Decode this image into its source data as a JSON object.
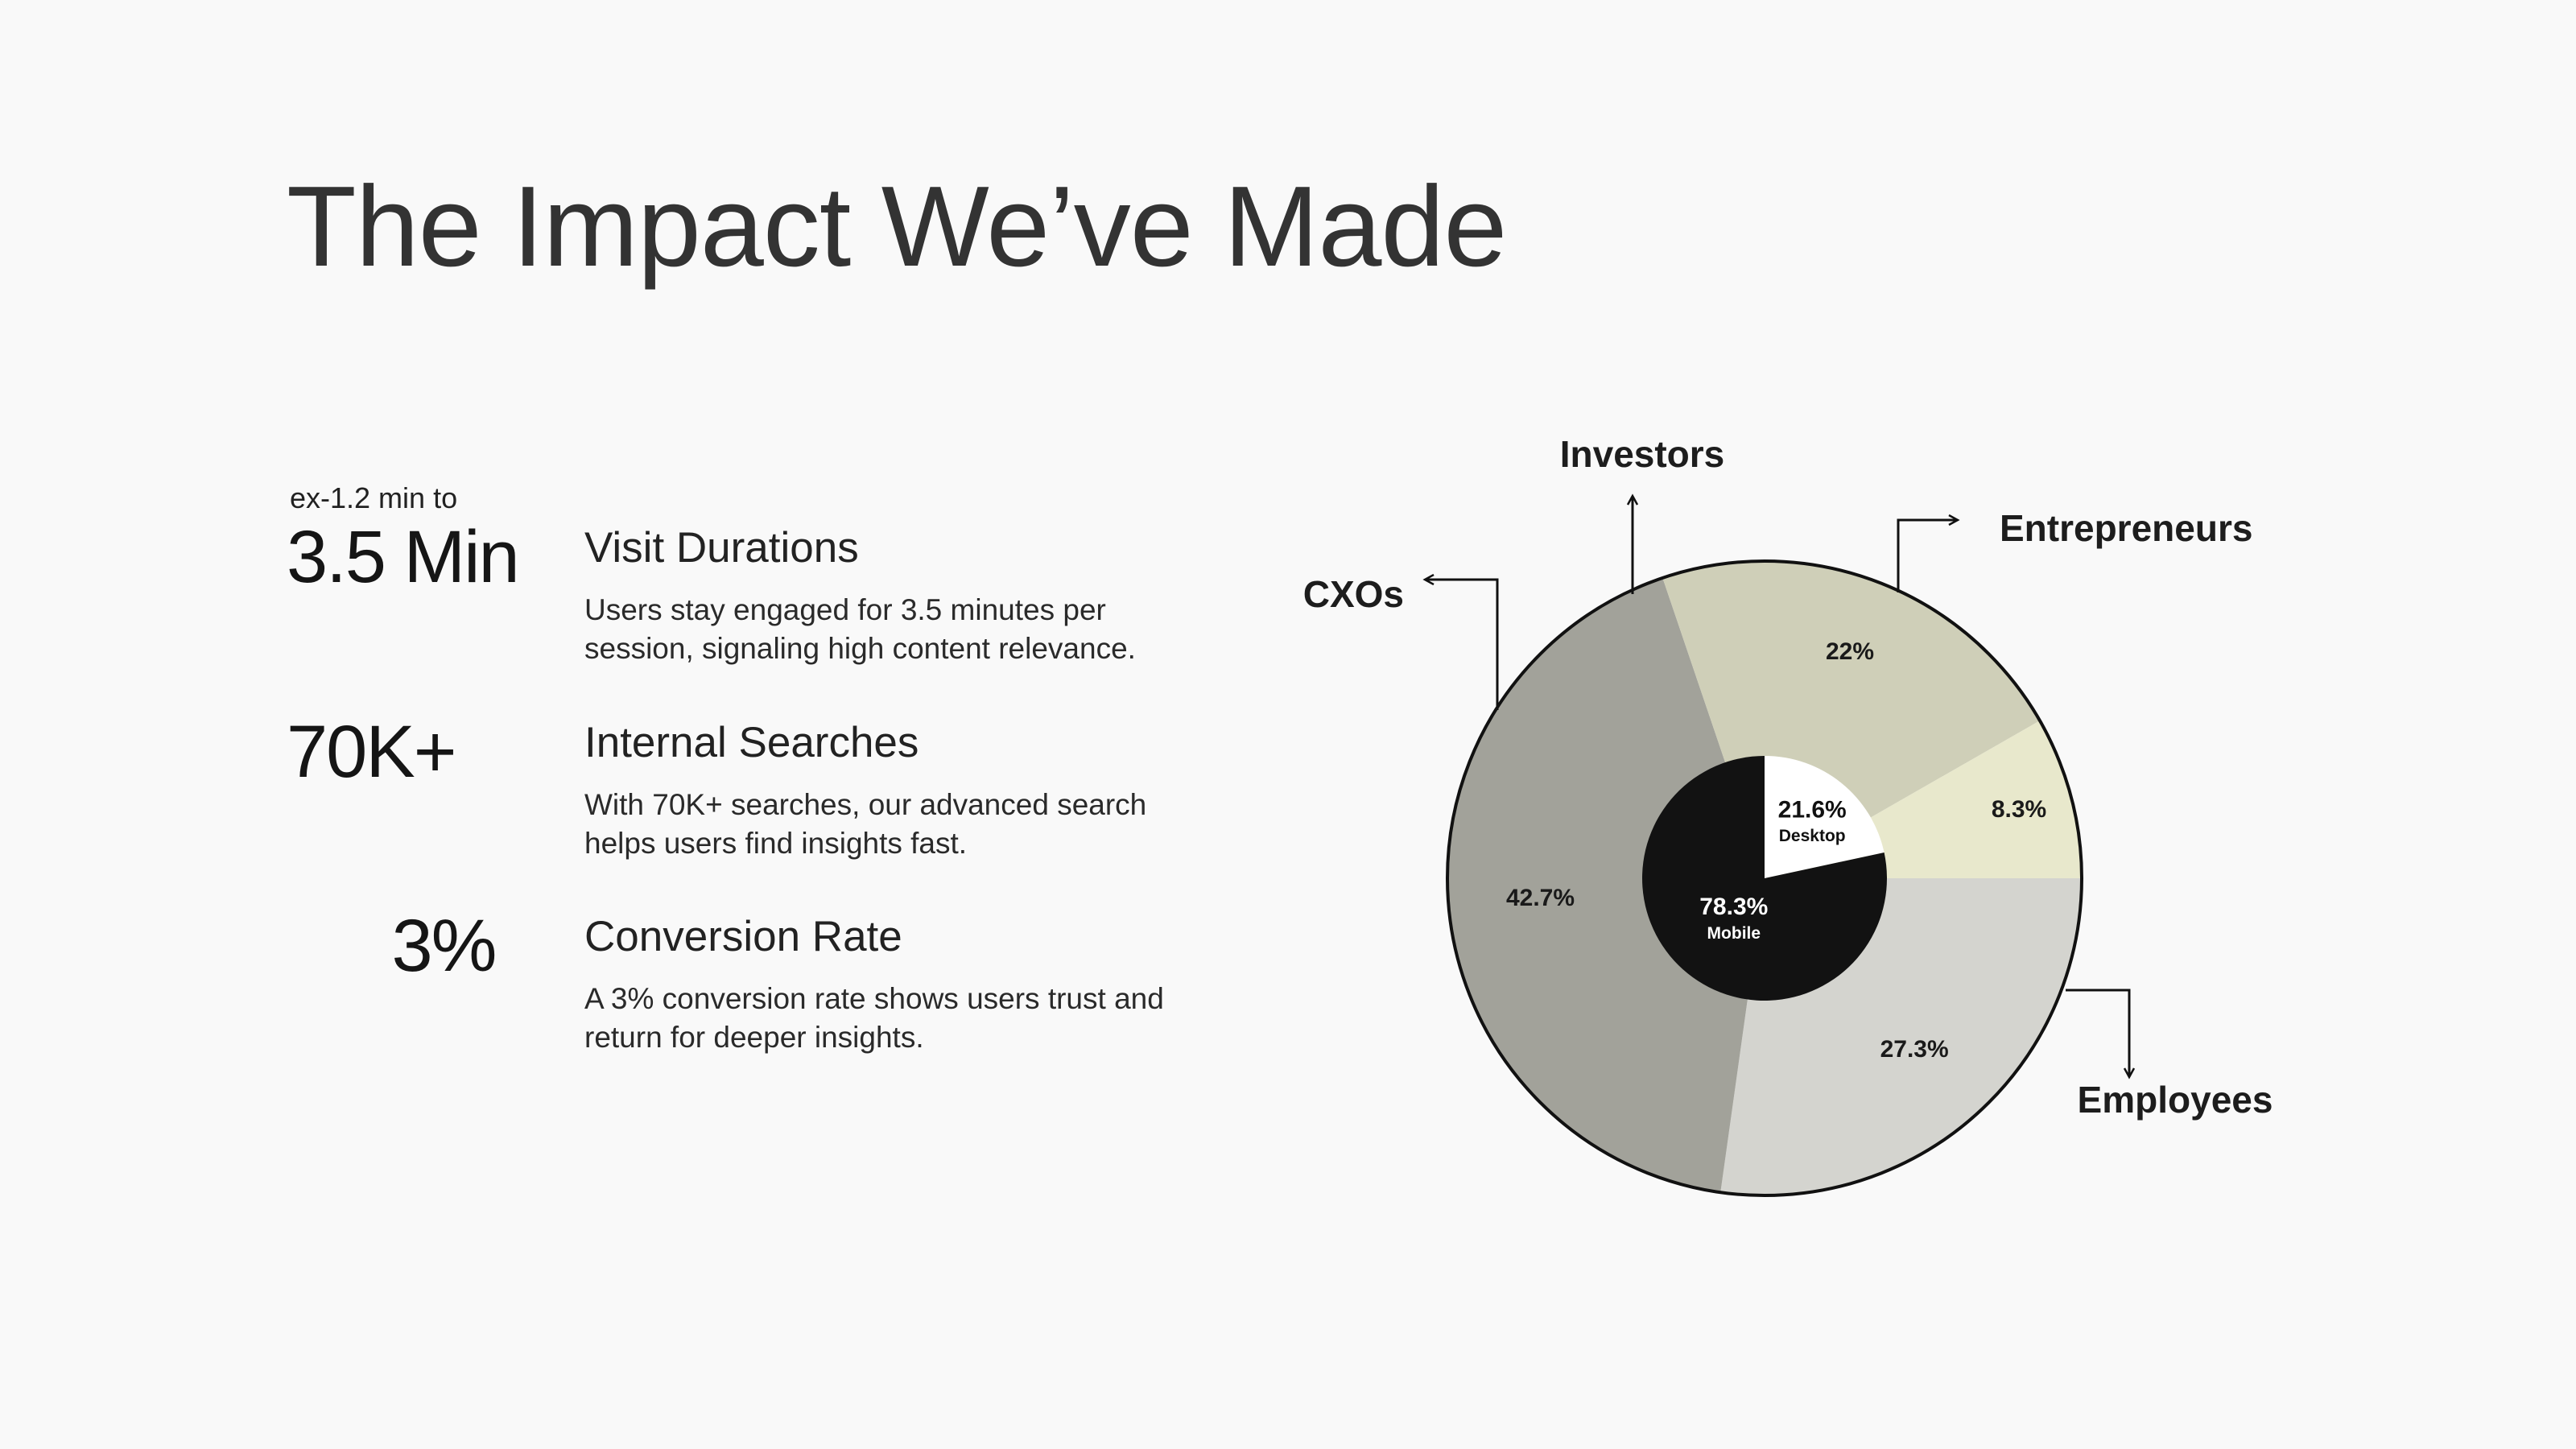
{
  "title": "The Impact We’ve Made",
  "stats": [
    {
      "pre": "ex-1.2 min to",
      "value": "3.5 Min",
      "heading": "Visit Durations",
      "desc": "Users stay engaged for 3.5 minutes per session, signaling high content relevance."
    },
    {
      "pre": "",
      "value": "70K+",
      "heading": "Internal Searches",
      "desc": "With 70K+ searches, our advanced search helps users find insights fast."
    },
    {
      "pre": "",
      "value": "3%",
      "heading": "Conversion Rate",
      "desc": "A 3% conversion rate shows users trust and return for deeper insights."
    }
  ],
  "chart_data": [
    {
      "type": "pie",
      "ring": "outer",
      "categories": [
        "Entrepreneurs",
        "Employees",
        "CXOs",
        "Investors"
      ],
      "values": [
        27.3,
        42.7,
        22,
        8.3
      ],
      "value_labels": [
        "27.3%",
        "42.7%",
        "22%",
        "8.3%"
      ],
      "colors": [
        "#d4d4cf",
        "#a2a29a",
        "#cfcfb8",
        "#e8e8cc"
      ],
      "title": ""
    },
    {
      "type": "pie",
      "ring": "inner",
      "categories": [
        "Desktop",
        "Mobile"
      ],
      "values": [
        21.6,
        78.3
      ],
      "value_labels": [
        "21.6%",
        "78.3%"
      ],
      "colors": [
        "#ffffff",
        "#121212"
      ],
      "title": ""
    }
  ]
}
